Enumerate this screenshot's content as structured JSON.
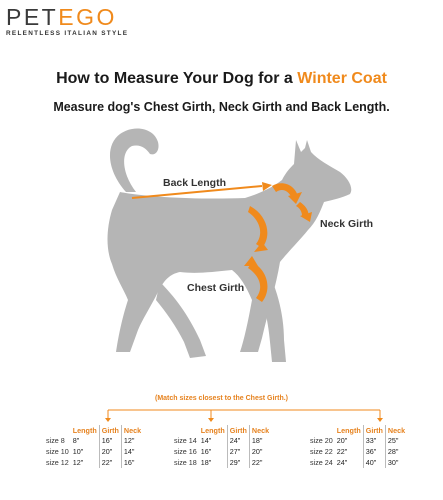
{
  "brand": {
    "logo_prefix": "PET",
    "logo_accent": "EGO",
    "tagline": "RELENTLESS ITALIAN STYLE"
  },
  "title": {
    "prefix": "How to Measure Your Dog for a ",
    "accent": "Winter Coat"
  },
  "subtitle": "Measure dog's Chest Girth, Neck Girth and Back Length.",
  "labels": {
    "back_length": "Back Length",
    "neck_girth": "Neck Girth",
    "chest_girth": "Chest Girth"
  },
  "match_note": "(Match sizes closest to the Chest Girth.)",
  "table": {
    "headers": {
      "length": "Length",
      "girth": "Girth",
      "neck": "Neck"
    },
    "groups": [
      {
        "rows": [
          {
            "size": "size  8",
            "length": "8\"",
            "girth": "16\"",
            "neck": "12\""
          },
          {
            "size": "size 10",
            "length": "10\"",
            "girth": "20\"",
            "neck": "14\""
          },
          {
            "size": "size 12",
            "length": "12\"",
            "girth": "22\"",
            "neck": "16\""
          }
        ]
      },
      {
        "rows": [
          {
            "size": "size 14",
            "length": "14\"",
            "girth": "24\"",
            "neck": "18\""
          },
          {
            "size": "size 16",
            "length": "16\"",
            "girth": "27\"",
            "neck": "20\""
          },
          {
            "size": "size 18",
            "length": "18\"",
            "girth": "29\"",
            "neck": "22\""
          }
        ]
      },
      {
        "rows": [
          {
            "size": "size 20",
            "length": "20\"",
            "girth": "33\"",
            "neck": "25\""
          },
          {
            "size": "size 22",
            "length": "22\"",
            "girth": "36\"",
            "neck": "28\""
          },
          {
            "size": "size 24",
            "length": "24\"",
            "girth": "40\"",
            "neck": "30\""
          }
        ]
      }
    ]
  },
  "colors": {
    "accent": "#f08a1c",
    "dog": "#b5b5b5",
    "text": "#1a1a1a"
  }
}
